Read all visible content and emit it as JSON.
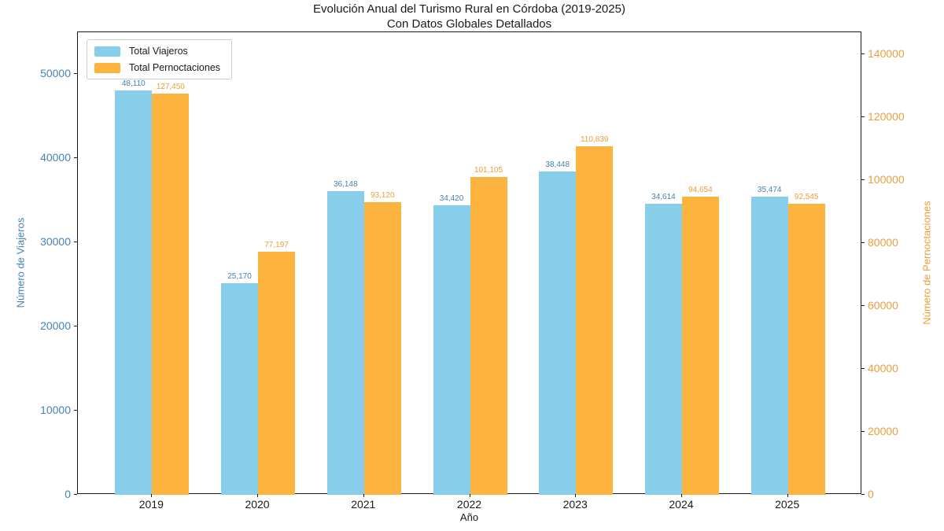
{
  "chart": {
    "title": "Evolución Anual del Turismo Rural en Córdoba (2019-2025)",
    "subtitle": "Con Datos Globales Detallados",
    "xlabel": "Año",
    "ylabel_left": "Número de Viajeros",
    "ylabel_right": "Número de Pernoctaciones"
  },
  "chart_data": {
    "type": "bar",
    "categories": [
      "2019",
      "2020",
      "2021",
      "2022",
      "2023",
      "2024",
      "2025"
    ],
    "series": [
      {
        "name": "Total Viajeros",
        "axis": "left",
        "color": "#87CEEB",
        "label_color": "#4682B4",
        "values": [
          48110,
          25170,
          36148,
          34420,
          38448,
          34614,
          35474
        ]
      },
      {
        "name": "Total Pernoctaciones",
        "axis": "right",
        "color": "#FDB43E",
        "label_color": "#EF9D38",
        "values": [
          127450,
          77197,
          93120,
          101105,
          110839,
          94654,
          92545
        ]
      }
    ],
    "left_axis": {
      "ticks": [
        0,
        10000,
        20000,
        30000,
        40000,
        50000
      ],
      "max": 55000,
      "tick_color": "#4682B4"
    },
    "right_axis": {
      "ticks": [
        0,
        20000,
        40000,
        60000,
        80000,
        100000,
        120000,
        140000
      ],
      "max": 147000,
      "tick_color": "#EF9D38"
    },
    "legend": {
      "position": "upper-left",
      "items": [
        "Total Viajeros",
        "Total Pernoctaciones"
      ]
    },
    "grid": false,
    "value_labels_visible": true,
    "value_label_format": "thousands-comma"
  }
}
